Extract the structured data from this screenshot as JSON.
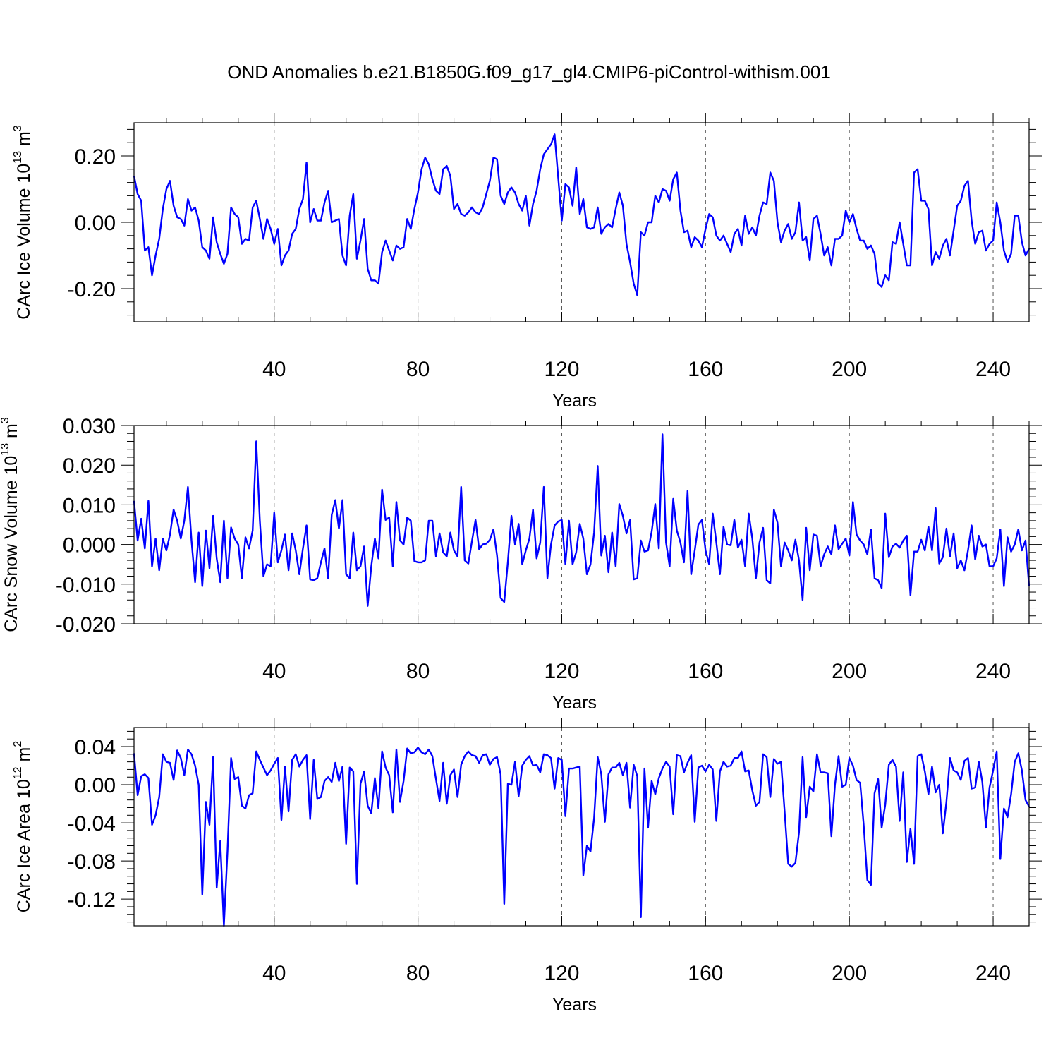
{
  "page": {
    "title": "OND Anomalies b.e21.B1850G.f09_g17_gl4.CMIP6-piControl-withism.001"
  },
  "chart_data": [
    {
      "type": "line",
      "id": "ice-volume",
      "title": "OND Anomalies b.e21.B1850G.f09_g17_gl4.CMIP6-piControl-withism.001",
      "xlabel": "Years",
      "ylabel": "CArc Ice Volume 10",
      "ylabel_exp": "13",
      "ylabel_unit": " m",
      "ylabel_unit_exp": "3",
      "xlim": [
        1,
        250
      ],
      "ylim": [
        -0.3,
        0.3
      ],
      "xticks": [
        40,
        80,
        120,
        160,
        200,
        240
      ],
      "xtick_labels": [
        "40",
        "80",
        "120",
        "160",
        "200",
        "240"
      ],
      "yticks": [
        -0.2,
        0.0,
        0.2
      ],
      "ytick_labels": [
        "-0.20",
        "0.00",
        "0.20"
      ],
      "grid": "vertical dashed",
      "color": "#0000ff",
      "series": [
        {
          "name": "CArc Ice Volume",
          "values": [
            0.14,
            0.085,
            0.065,
            -0.085,
            -0.075,
            -0.16,
            -0.1,
            -0.05,
            0.04,
            0.1,
            0.125,
            0.05,
            0.015,
            0.01,
            -0.01,
            0.07,
            0.035,
            0.045,
            0.005,
            -0.075,
            -0.085,
            -0.11,
            0.015,
            -0.06,
            -0.095,
            -0.125,
            -0.095,
            0.045,
            0.025,
            0.015,
            -0.065,
            -0.05,
            -0.055,
            0.045,
            0.065,
            0.01,
            -0.05,
            0.01,
            -0.02,
            -0.065,
            -0.02,
            -0.13,
            -0.1,
            -0.085,
            -0.035,
            -0.02,
            0.04,
            0.07,
            0.18,
            0.0,
            0.04,
            0.005,
            0.005,
            0.06,
            0.095,
            0.0,
            0.005,
            0.01,
            -0.1,
            -0.13,
            0.02,
            0.085,
            -0.11,
            -0.055,
            0.01,
            -0.14,
            -0.175,
            -0.175,
            -0.185,
            -0.09,
            -0.055,
            -0.085,
            -0.115,
            -0.07,
            -0.08,
            -0.075,
            0.01,
            -0.02,
            0.04,
            0.09,
            0.16,
            0.195,
            0.175,
            0.13,
            0.095,
            0.085,
            0.16,
            0.17,
            0.14,
            0.04,
            0.055,
            0.025,
            0.02,
            0.03,
            0.045,
            0.03,
            0.025,
            0.045,
            0.085,
            0.125,
            0.195,
            0.19,
            0.08,
            0.055,
            0.09,
            0.105,
            0.09,
            0.055,
            0.035,
            0.08,
            -0.01,
            0.055,
            0.095,
            0.16,
            0.205,
            0.22,
            0.235,
            0.265,
            0.135,
            0.005,
            0.115,
            0.105,
            0.05,
            0.165,
            0.025,
            0.07,
            -0.015,
            -0.02,
            -0.015,
            0.045,
            -0.035,
            -0.015,
            -0.005,
            -0.015,
            0.04,
            0.09,
            0.05,
            -0.065,
            -0.12,
            -0.185,
            -0.22,
            -0.03,
            -0.04,
            0.0,
            0.0,
            0.08,
            0.06,
            0.1,
            0.095,
            0.065,
            0.13,
            0.15,
            0.035,
            -0.03,
            -0.025,
            -0.075,
            -0.045,
            -0.055,
            -0.075,
            -0.02,
            0.025,
            0.015,
            -0.04,
            -0.055,
            -0.04,
            -0.065,
            -0.09,
            -0.035,
            -0.02,
            -0.07,
            0.02,
            -0.035,
            -0.015,
            -0.04,
            0.02,
            0.06,
            0.055,
            0.15,
            0.125,
            0.0,
            -0.06,
            -0.025,
            -0.005,
            -0.05,
            -0.03,
            0.06,
            -0.055,
            -0.045,
            -0.115,
            0.01,
            0.02,
            -0.035,
            -0.1,
            -0.075,
            -0.13,
            -0.05,
            -0.05,
            -0.04,
            0.035,
            0.0,
            0.025,
            -0.02,
            -0.055,
            -0.055,
            -0.08,
            -0.07,
            -0.095,
            -0.185,
            -0.195,
            -0.16,
            -0.175,
            -0.06,
            -0.065,
            0.0,
            -0.065,
            -0.13,
            -0.13,
            0.15,
            0.16,
            0.065,
            0.065,
            0.04,
            -0.13,
            -0.09,
            -0.11,
            -0.07,
            -0.05,
            -0.1,
            -0.025,
            0.05,
            0.065,
            0.11,
            0.125,
            0.005,
            -0.065,
            -0.03,
            -0.025,
            -0.085,
            -0.065,
            -0.055,
            0.06,
            0.0,
            -0.085,
            -0.12,
            -0.095,
            0.02,
            0.02,
            -0.06,
            -0.1,
            -0.08
          ]
        }
      ]
    },
    {
      "type": "line",
      "id": "snow-volume",
      "xlabel": "Years",
      "ylabel": "CArc Snow Volume 10",
      "ylabel_exp": "13",
      "ylabel_unit": " m",
      "ylabel_unit_exp": "3",
      "xlim": [
        1,
        250
      ],
      "ylim": [
        -0.02,
        0.03
      ],
      "xticks": [
        40,
        80,
        120,
        160,
        200,
        240
      ],
      "xtick_labels": [
        "40",
        "80",
        "120",
        "160",
        "200",
        "240"
      ],
      "yticks": [
        -0.02,
        -0.01,
        0.0,
        0.01,
        0.02,
        0.03
      ],
      "ytick_labels": [
        "-0.020",
        "-0.010",
        "0.000",
        "0.010",
        "0.020",
        "0.030"
      ],
      "grid": "vertical dashed",
      "color": "#0000ff",
      "series": [
        {
          "name": "CArc Snow Volume",
          "values": [
            0.011,
            0.001,
            0.0065,
            -0.001,
            0.011,
            -0.0055,
            0.0015,
            -0.0065,
            0.0015,
            -0.0015,
            0.0025,
            0.0088,
            0.006,
            0.0015,
            0.006,
            0.0145,
            0.001,
            -0.0095,
            0.003,
            -0.0105,
            0.0035,
            -0.006,
            0.0072,
            -0.0035,
            -0.0095,
            0.006,
            -0.0085,
            0.0043,
            0.0015,
            0.0,
            -0.0085,
            0.0018,
            -0.001,
            0.0035,
            0.026,
            0.006,
            -0.008,
            -0.005,
            -0.0055,
            0.008,
            -0.0045,
            -0.0015,
            0.0025,
            -0.0065,
            0.0028,
            -0.0015,
            -0.0075,
            -0.001,
            0.0048,
            -0.0088,
            -0.009,
            -0.0085,
            -0.0045,
            -0.001,
            -0.0085,
            0.0075,
            0.0112,
            0.004,
            0.0112,
            -0.0075,
            -0.0085,
            0.003,
            -0.0065,
            -0.0055,
            -0.0005,
            -0.0155,
            -0.0055,
            0.0015,
            -0.0035,
            0.0138,
            0.0062,
            0.0068,
            -0.0055,
            0.0107,
            0.001,
            0.0,
            0.0068,
            0.006,
            -0.0042,
            -0.0045,
            -0.0045,
            -0.004,
            0.006,
            0.006,
            -0.003,
            0.0028,
            -0.002,
            -0.003,
            0.003,
            -0.0015,
            -0.003,
            0.0145,
            -0.004,
            -0.0048,
            0.0008,
            0.0062,
            -0.0012,
            0.0,
            0.0002,
            0.0012,
            0.0038,
            -0.0028,
            -0.0135,
            -0.0145,
            -0.0045,
            0.0072,
            0.0,
            0.0052,
            -0.005,
            -0.0015,
            0.0015,
            0.0088,
            -0.0035,
            0.0005,
            0.0145,
            -0.0085,
            0.0,
            0.0048,
            0.0058,
            0.0062,
            -0.005,
            0.006,
            -0.005,
            -0.002,
            0.0052,
            0.0015,
            -0.0075,
            -0.005,
            0.003,
            0.0198,
            -0.0028,
            0.0022,
            -0.007,
            0.003,
            -0.0055,
            0.0102,
            0.0072,
            0.0028,
            0.0062,
            -0.0088,
            -0.0085,
            0.001,
            -0.0018,
            -0.0015,
            0.0032,
            0.0102,
            -0.001,
            0.0278,
            0.0005,
            -0.0055,
            0.0115,
            0.0035,
            0.0005,
            -0.0045,
            0.0135,
            -0.0075,
            -0.0015,
            0.005,
            0.0062,
            -0.0015,
            -0.005,
            0.0078,
            0.0005,
            -0.0075,
            0.0045,
            0.0,
            -0.0002,
            0.0062,
            -0.0008,
            0.0012,
            -0.0055,
            0.0078,
            0.0015,
            -0.0085,
            0.0005,
            0.0042,
            -0.009,
            -0.0098,
            0.0088,
            0.0055,
            -0.0055,
            0.0005,
            -0.0015,
            -0.004,
            0.0012,
            -0.004,
            -0.014,
            0.0042,
            -0.0065,
            0.0025,
            0.0022,
            -0.0055,
            -0.0025,
            -0.0005,
            -0.0025,
            0.0048,
            -0.0012,
            0.0002,
            0.0015,
            -0.0028,
            0.0107,
            0.0025,
            0.001,
            0.0,
            -0.0025,
            0.0038,
            -0.0085,
            -0.009,
            -0.011,
            0.0078,
            -0.0032,
            -0.0005,
            0.0002,
            -0.0008,
            0.001,
            0.0022,
            -0.0128,
            -0.0018,
            -0.0018,
            0.0012,
            -0.0015,
            0.0045,
            -0.0015,
            0.0092,
            -0.0048,
            -0.0032,
            0.004,
            -0.003,
            0.0028,
            -0.006,
            -0.004,
            -0.0065,
            -0.0015,
            0.0048,
            -0.0038,
            0.0022,
            -0.0005,
            0.0,
            -0.0055,
            -0.0055,
            -0.0035,
            0.0038,
            -0.0105,
            0.0018,
            -0.0018,
            0.0,
            0.0038,
            -0.0015,
            0.001,
            -0.0105
          ]
        }
      ]
    },
    {
      "type": "line",
      "id": "ice-area",
      "xlabel": "Years",
      "ylabel": "CArc Ice Area 10",
      "ylabel_exp": "12",
      "ylabel_unit": " m",
      "ylabel_unit_exp": "2",
      "xlim": [
        1,
        250
      ],
      "ylim": [
        -0.148,
        0.06
      ],
      "xticks": [
        40,
        80,
        120,
        160,
        200,
        240
      ],
      "xtick_labels": [
        "40",
        "80",
        "120",
        "160",
        "200",
        "240"
      ],
      "yticks": [
        -0.12,
        -0.08,
        -0.04,
        0.0,
        0.04
      ],
      "ytick_labels": [
        "-0.12",
        "-0.08",
        "-0.04",
        "0.00",
        "0.04"
      ],
      "grid": "vertical dashed",
      "color": "#0000ff",
      "series": [
        {
          "name": "CArc Ice Area",
          "values": [
            0.033,
            -0.011,
            0.009,
            0.011,
            0.007,
            -0.042,
            -0.032,
            -0.013,
            0.032,
            0.024,
            0.023,
            0.005,
            0.036,
            0.028,
            0.01,
            0.037,
            0.032,
            0.02,
            0.0,
            -0.115,
            -0.018,
            -0.042,
            0.029,
            -0.108,
            -0.059,
            -0.148,
            -0.07,
            0.028,
            0.006,
            0.008,
            -0.022,
            -0.025,
            -0.011,
            -0.009,
            0.035,
            0.026,
            0.018,
            0.01,
            0.015,
            0.022,
            0.028,
            -0.037,
            0.019,
            -0.028,
            0.026,
            0.032,
            0.019,
            0.026,
            0.031,
            -0.036,
            0.026,
            -0.015,
            -0.013,
            0.004,
            0.008,
            0.003,
            0.023,
            0.004,
            0.019,
            -0.062,
            0.018,
            0.014,
            -0.104,
            0.001,
            0.014,
            -0.022,
            -0.03,
            0.007,
            -0.025,
            0.035,
            0.018,
            0.01,
            -0.029,
            0.037,
            -0.018,
            0.004,
            0.038,
            0.033,
            0.034,
            0.039,
            0.034,
            0.032,
            0.037,
            0.03,
            0.006,
            -0.017,
            0.023,
            -0.02,
            0.01,
            0.016,
            -0.013,
            0.021,
            0.03,
            0.035,
            0.031,
            0.03,
            0.023,
            0.031,
            0.032,
            0.021,
            0.027,
            0.029,
            0.011,
            -0.125,
            0.001,
            0.0,
            0.024,
            -0.012,
            0.02,
            0.026,
            0.03,
            0.02,
            0.021,
            0.013,
            0.032,
            0.031,
            0.028,
            -0.004,
            0.028,
            0.026,
            -0.033,
            0.017,
            0.017,
            0.018,
            0.019,
            -0.095,
            -0.064,
            -0.07,
            -0.035,
            0.029,
            0.011,
            -0.039,
            0.011,
            0.018,
            0.018,
            0.023,
            0.01,
            0.023,
            -0.024,
            0.021,
            0.009,
            -0.139,
            0.017,
            -0.045,
            0.004,
            -0.01,
            0.007,
            0.017,
            0.024,
            0.019,
            -0.031,
            0.031,
            0.03,
            0.013,
            0.023,
            0.031,
            -0.039,
            0.018,
            0.02,
            0.014,
            0.021,
            0.016,
            -0.038,
            0.014,
            0.024,
            0.019,
            0.02,
            0.028,
            0.028,
            0.035,
            0.014,
            0.015,
            -0.006,
            -0.022,
            -0.018,
            0.032,
            0.029,
            -0.013,
            0.027,
            0.022,
            0.024,
            -0.028,
            -0.083,
            -0.086,
            -0.082,
            -0.05,
            0.029,
            -0.034,
            -0.002,
            -0.007,
            0.032,
            0.013,
            0.013,
            0.012,
            -0.054,
            0.0,
            0.03,
            -0.002,
            0.0,
            0.028,
            0.02,
            0.005,
            0.002,
            -0.043,
            -0.1,
            -0.105,
            -0.009,
            0.006,
            -0.045,
            -0.021,
            0.021,
            0.026,
            0.019,
            -0.038,
            0.013,
            -0.081,
            -0.046,
            -0.083,
            0.03,
            0.032,
            0.014,
            -0.01,
            0.019,
            -0.008,
            0.0,
            -0.051,
            -0.018,
            0.028,
            0.015,
            0.013,
            0.005,
            0.025,
            0.028,
            -0.004,
            -0.003,
            0.024,
            0.003,
            -0.045,
            -0.003,
            0.015,
            0.035,
            -0.078,
            -0.025,
            -0.034,
            -0.01,
            0.024,
            0.033,
            0.015,
            -0.016,
            -0.023
          ]
        }
      ]
    }
  ]
}
